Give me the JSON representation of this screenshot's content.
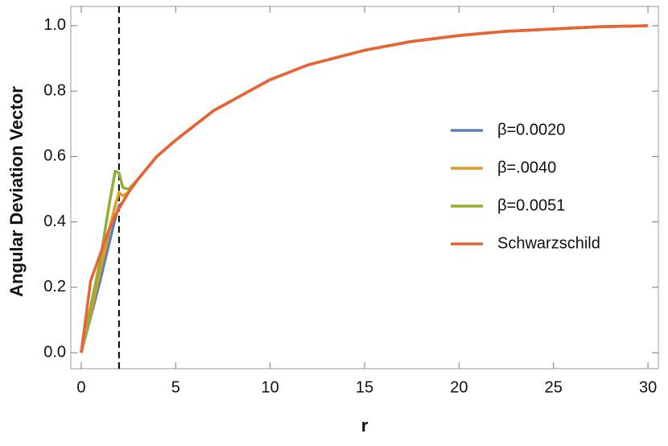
{
  "chart_data": {
    "type": "line",
    "x_label": "r",
    "y_label": "Angular Deviation Vector",
    "x": [
      0,
      0.5,
      1,
      1.5,
      1.8,
      2,
      2.2,
      2.5,
      3,
      4,
      5,
      7,
      10,
      12,
      15,
      17.5,
      20,
      22.5,
      25,
      27.5,
      30
    ],
    "series": [
      {
        "name": "β=0.0020",
        "color": "#5e81b5",
        "values": [
          0,
          0.11,
          0.22,
          0.34,
          0.41,
          0.45,
          0.46,
          0.49,
          0.53,
          0.6,
          0.65,
          0.74,
          0.835,
          0.88,
          0.925,
          0.952,
          0.97,
          0.983,
          0.99,
          0.997,
          1.0
        ]
      },
      {
        "name": "β=.0040",
        "color": "#e19c24",
        "values": [
          0,
          0.12,
          0.25,
          0.38,
          0.45,
          0.49,
          0.48,
          0.49,
          0.53,
          0.6,
          0.65,
          0.74,
          0.835,
          0.88,
          0.925,
          0.952,
          0.97,
          0.983,
          0.99,
          0.997,
          1.0
        ]
      },
      {
        "name": "β=0.0051",
        "color": "#8fb032",
        "values": [
          0,
          0.14,
          0.28,
          0.46,
          0.555,
          0.55,
          0.505,
          0.5,
          0.53,
          0.6,
          0.65,
          0.74,
          0.835,
          0.88,
          0.925,
          0.952,
          0.97,
          0.983,
          0.99,
          0.997,
          1.0
        ]
      },
      {
        "name": "Schwarzschild",
        "color": "#eb6235",
        "values": [
          0,
          0.22,
          0.3,
          0.38,
          0.42,
          0.44,
          0.46,
          0.49,
          0.53,
          0.6,
          0.65,
          0.74,
          0.835,
          0.88,
          0.925,
          0.952,
          0.97,
          0.983,
          0.99,
          0.997,
          1.0
        ]
      }
    ],
    "xlim": [
      -0.55,
      30.55
    ],
    "ylim": [
      -0.049,
      1.059
    ],
    "xticks": [
      0,
      5,
      10,
      15,
      20,
      25,
      30
    ],
    "yticks": [
      {
        "value": 0,
        "label": "0.0"
      },
      0.2,
      0.4,
      0.6,
      0.8,
      {
        "value": 1,
        "label": "1.0"
      }
    ],
    "vline": 2,
    "legend": "right",
    "grid": false
  }
}
